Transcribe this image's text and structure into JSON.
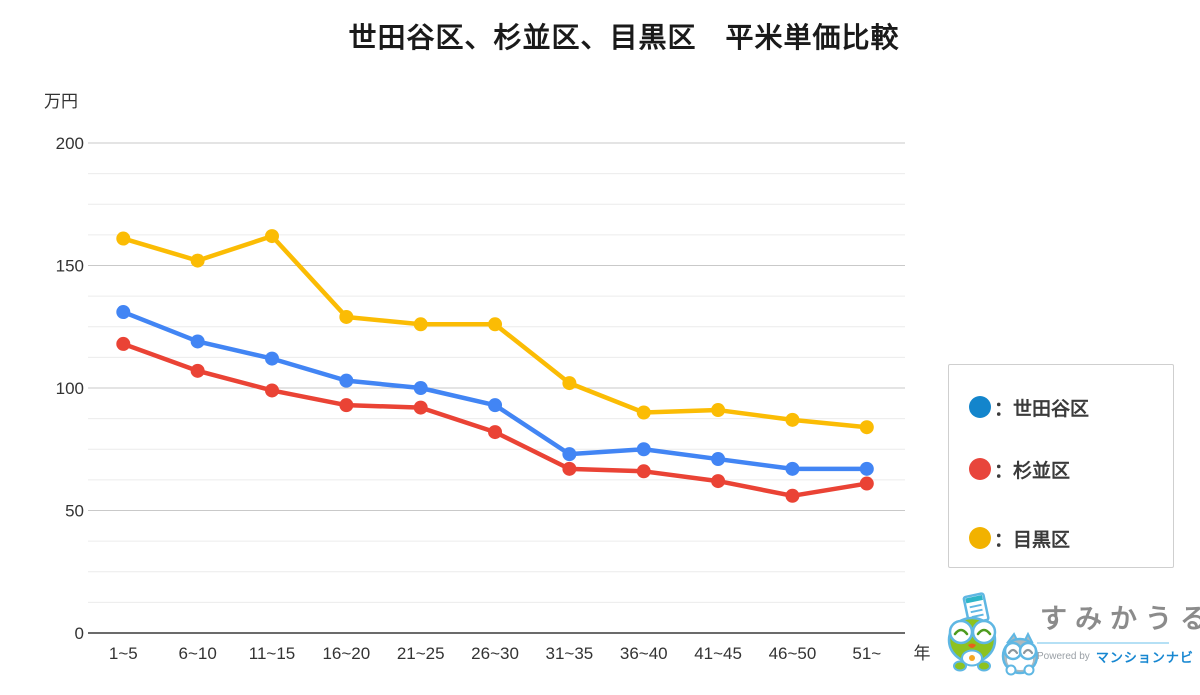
{
  "title": "世田谷区、杉並区、目黒区　平米単価比較",
  "chart_data": {
    "type": "line",
    "title": "世田谷区、杉並区、目黒区　平米単価比較",
    "y_unit_label": "万円",
    "x_unit_label": "年",
    "categories": [
      "1~5",
      "6~10",
      "11~15",
      "16~20",
      "21~25",
      "26~30",
      "31~35",
      "36~40",
      "41~45",
      "46~50",
      "51~"
    ],
    "series": [
      {
        "name": "世田谷区",
        "color": "#4285F4",
        "values": [
          131,
          119,
          112,
          103,
          100,
          93,
          73,
          75,
          71,
          67,
          67
        ]
      },
      {
        "name": "杉並区",
        "color": "#EA4335",
        "values": [
          118,
          107,
          99,
          93,
          92,
          82,
          67,
          66,
          62,
          56,
          61
        ]
      },
      {
        "name": "目黒区",
        "color": "#FBBC04",
        "values": [
          161,
          152,
          162,
          129,
          126,
          126,
          102,
          90,
          91,
          87,
          84
        ]
      }
    ],
    "ylim": [
      0,
      200
    ],
    "yticks": [
      0,
      50,
      100,
      150,
      200
    ],
    "minor_grid_step": 12.5,
    "grid": true,
    "legend_position": "right"
  },
  "legend": {
    "items": [
      {
        "label": "：世田谷区",
        "color": "#1385CC"
      },
      {
        "label": "：杉並区",
        "color": "#E8453C"
      },
      {
        "label": "：目黒区",
        "color": "#F2B200"
      }
    ]
  },
  "logo": {
    "brand": "すみかうる",
    "powered_by": "Powered by",
    "powered_brand": "マンションナビ",
    "brand_color": "#8B8B8B",
    "powered_brand_color": "#1787D1"
  },
  "style": {
    "grid_minor_color": "#ececec",
    "grid_major_color": "#c9c9c9",
    "axis_color": "#6b6b6b",
    "tick_label_color": "#333333"
  }
}
